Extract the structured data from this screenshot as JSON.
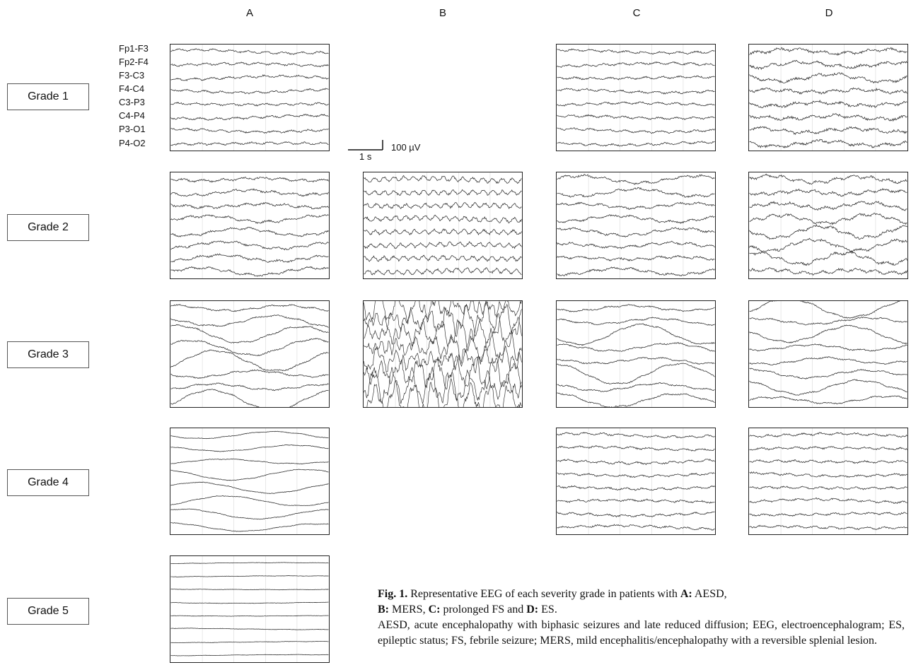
{
  "columns": [
    "A",
    "B",
    "C",
    "D"
  ],
  "grades": [
    "Grade 1",
    "Grade 2",
    "Grade 3",
    "Grade 4",
    "Grade 5"
  ],
  "channels": [
    "Fp1-F3",
    "Fp2-F4",
    "F3-C3",
    "F4-C4",
    "C3-P3",
    "C4-P4",
    "P3-O1",
    "P4-O2"
  ],
  "scale": {
    "amplitude": "100 µV",
    "time": "1 s"
  },
  "panels": [
    {
      "column": "A",
      "grade": 1,
      "pattern": "low-fast"
    },
    {
      "column": "C",
      "grade": 1,
      "pattern": "low-fast"
    },
    {
      "column": "D",
      "grade": 1,
      "pattern": "mixed-irregular"
    },
    {
      "column": "A",
      "grade": 2,
      "pattern": "mild-slow"
    },
    {
      "column": "B",
      "grade": 2,
      "pattern": "fast-dense"
    },
    {
      "column": "C",
      "grade": 2,
      "pattern": "mild-slow"
    },
    {
      "column": "D",
      "grade": 2,
      "pattern": "mild-slow-large"
    },
    {
      "column": "A",
      "grade": 3,
      "pattern": "high-slow"
    },
    {
      "column": "B",
      "grade": 3,
      "pattern": "spike-wave"
    },
    {
      "column": "C",
      "grade": 3,
      "pattern": "high-slow"
    },
    {
      "column": "D",
      "grade": 3,
      "pattern": "high-slow"
    },
    {
      "column": "A",
      "grade": 4,
      "pattern": "low-slow"
    },
    {
      "column": "C",
      "grade": 4,
      "pattern": "low-fast"
    },
    {
      "column": "D",
      "grade": 4,
      "pattern": "low-fast"
    },
    {
      "column": "A",
      "grade": 5,
      "pattern": "flat"
    }
  ],
  "caption": {
    "fig_label": "Fig. 1.",
    "text_1": " Representative EEG of each severity grade in patients with ",
    "a_label": "A:",
    "a_text": " AESD,",
    "b_label": "B:",
    "b_text": " MERS, ",
    "c_label": "C:",
    "c_text": " prolonged FS and ",
    "d_label": "D:",
    "d_text": " ES.",
    "abbreviations": "AESD, acute encephalopathy with biphasic seizures and late reduced diffusion; EEG, electroencephalogram; ES, epileptic status; FS, febrile seizure; MERS, mild encephalitis/encephalopathy with a reversible splenial lesion."
  }
}
